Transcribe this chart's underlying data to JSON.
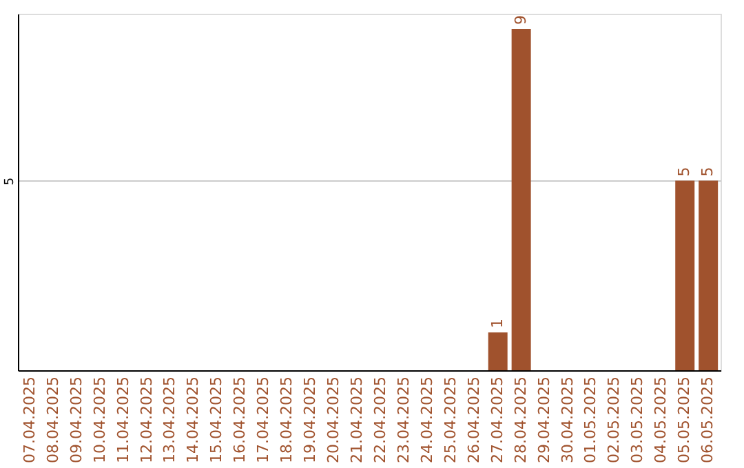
{
  "chart_data": {
    "type": "bar",
    "categories": [
      "07.04.2025",
      "08.04.2025",
      "09.04.2025",
      "10.04.2025",
      "11.04.2025",
      "12.04.2025",
      "13.04.2025",
      "14.04.2025",
      "15.04.2025",
      "16.04.2025",
      "17.04.2025",
      "18.04.2025",
      "19.04.2025",
      "20.04.2025",
      "21.04.2025",
      "22.04.2025",
      "23.04.2025",
      "24.04.2025",
      "25.04.2025",
      "26.04.2025",
      "27.04.2025",
      "28.04.2025",
      "29.04.2025",
      "30.04.2025",
      "01.05.2025",
      "02.05.2025",
      "03.05.2025",
      "04.05.2025",
      "05.05.2025",
      "06.05.2025"
    ],
    "values": [
      null,
      null,
      null,
      null,
      null,
      null,
      null,
      null,
      null,
      null,
      null,
      null,
      null,
      null,
      null,
      null,
      null,
      null,
      null,
      null,
      1,
      9,
      null,
      null,
      null,
      null,
      null,
      null,
      5,
      5
    ],
    "color": "#a0522d",
    "ylim": [
      0,
      9.4
    ],
    "yticks": [
      5
    ],
    "grid": "y",
    "data_labels": true
  }
}
